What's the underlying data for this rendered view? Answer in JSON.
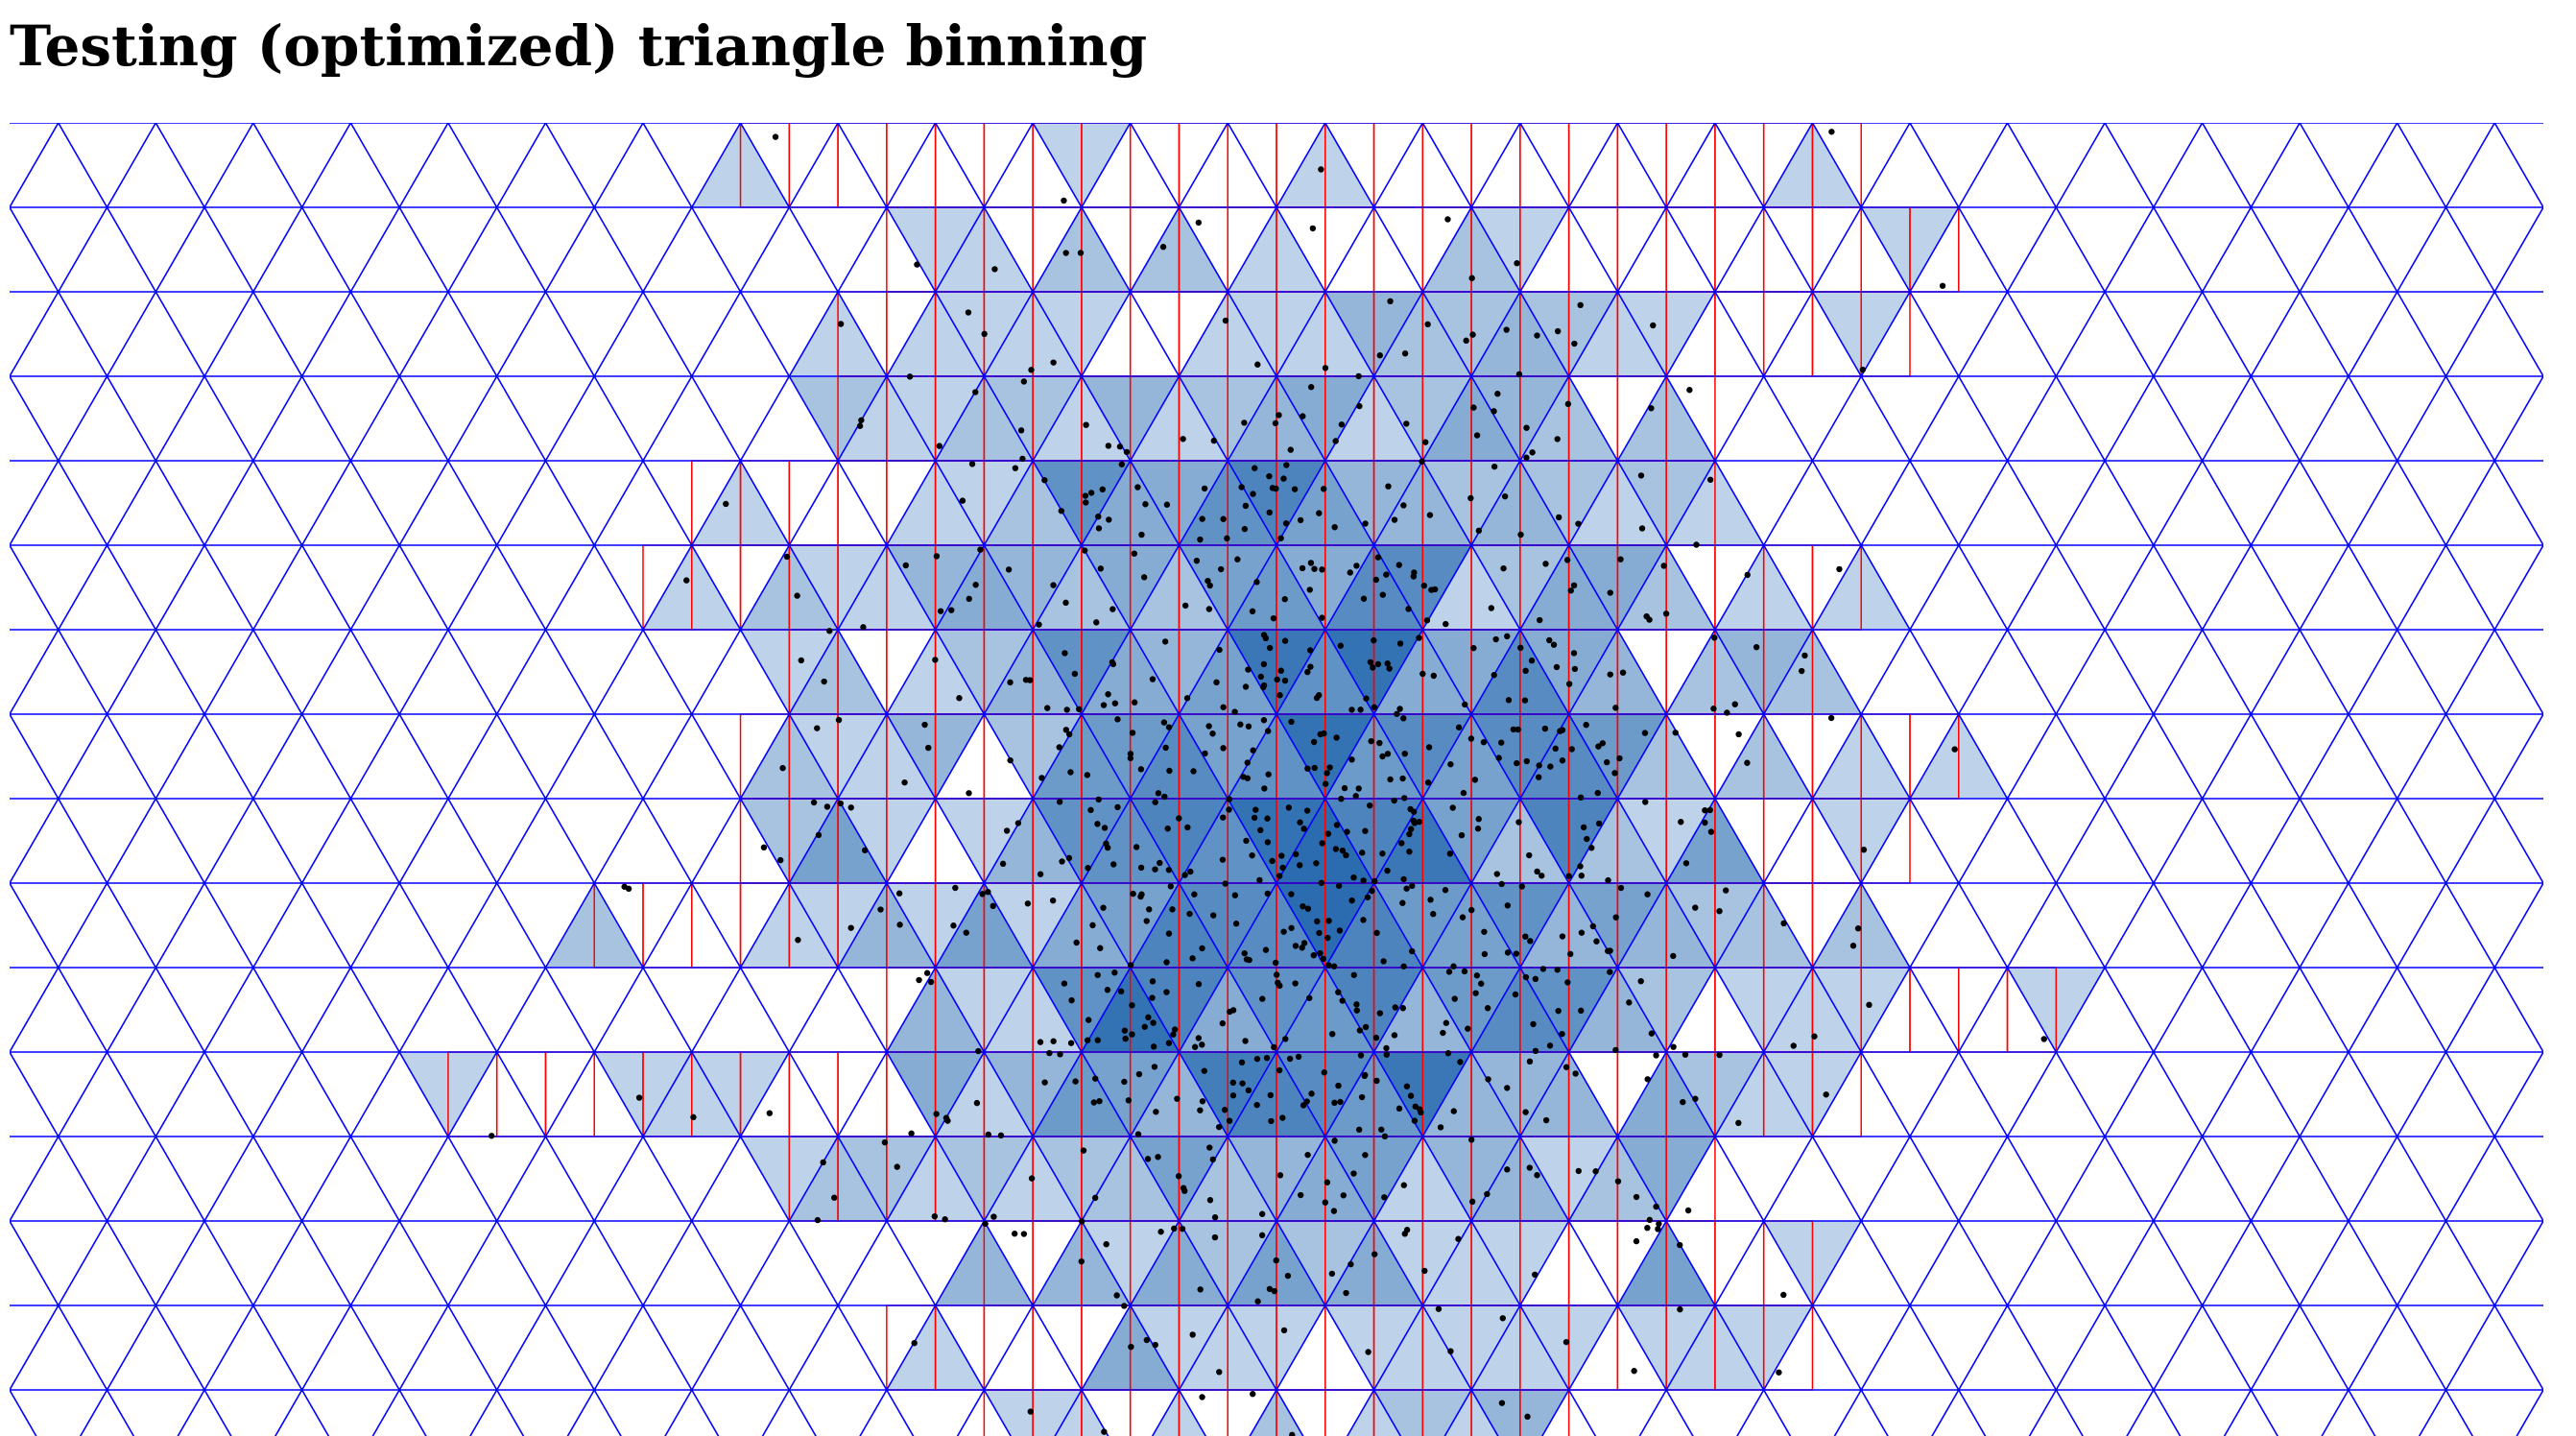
{
  "page": {
    "title": "Testing (optimized) triangle binning"
  },
  "grid": {
    "columns": 26,
    "rows": 16,
    "line_color": "#0000ff",
    "candidate_color": "#ff0000",
    "fill_color_low": "#f7fbff",
    "fill_color_high": "#2b6cb0",
    "point_color": "#000000"
  },
  "chart_data": {
    "type": "scatter",
    "title": "Testing (optimized) triangle binning",
    "xlabel": "",
    "ylabel": "",
    "xlim": [
      0,
      26
    ],
    "ylim": [
      0,
      16
    ],
    "grid": true,
    "binning": "triangular",
    "point_count": 900,
    "distribution": {
      "kind": "gaussian",
      "center": [
        13.3,
        8.3
      ],
      "stdev": [
        2.4,
        3.2
      ]
    }
  }
}
